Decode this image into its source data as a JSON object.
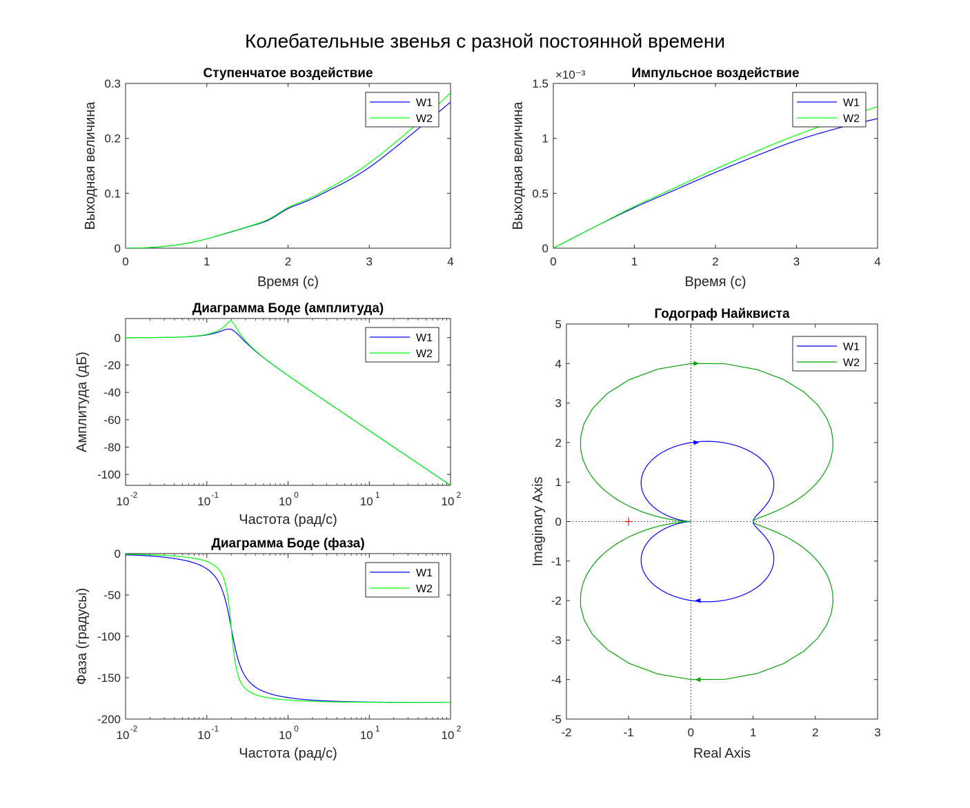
{
  "figure": {
    "suptitle": "Колебательные звенья с разной постоянной времени"
  },
  "colors": {
    "W1": "#0000ff",
    "W2": "#00ff00",
    "W2_nyquist": "#00a000",
    "critical_point": "#ff0000"
  },
  "chart_data": [
    {
      "id": "step",
      "type": "line",
      "title": "Ступенчатое воздействие",
      "xlabel": "Время (с)",
      "ylabel": "Выходная величина",
      "xlim": [
        0,
        4
      ],
      "ylim": [
        0,
        0.3
      ],
      "xticks": [
        "0",
        "1",
        "2",
        "3",
        "4"
      ],
      "yticks": [
        "0",
        "0.1",
        "0.2",
        "0.3"
      ],
      "legend": {
        "position": "top-right",
        "entries": [
          "W1",
          "W2"
        ]
      },
      "series": [
        {
          "name": "W1",
          "x": [
            0,
            0.25,
            0.5,
            0.75,
            1,
            1.25,
            1.5,
            1.75,
            2,
            2.25,
            2.5,
            2.75,
            3,
            3.25,
            3.5,
            3.75,
            4
          ],
          "y": [
            0,
            0.0008,
            0.0037,
            0.0087,
            0.017,
            0.0275,
            0.0385,
            0.0505,
            0.072,
            0.087,
            0.105,
            0.124,
            0.147,
            0.175,
            0.205,
            0.235,
            0.266
          ]
        },
        {
          "name": "W2",
          "x": [
            0,
            0.25,
            0.5,
            0.75,
            1,
            1.25,
            1.5,
            1.75,
            2,
            2.25,
            2.5,
            2.75,
            3,
            3.25,
            3.5,
            3.75,
            4
          ],
          "y": [
            0,
            0.0008,
            0.0037,
            0.0088,
            0.017,
            0.028,
            0.039,
            0.052,
            0.074,
            0.09,
            0.109,
            0.13,
            0.155,
            0.184,
            0.215,
            0.248,
            0.283
          ]
        }
      ]
    },
    {
      "id": "impulse",
      "type": "line",
      "title": "Импульсное воздействие",
      "xlabel": "Время (с)",
      "ylabel": "Выходная величина",
      "xlim": [
        0,
        4
      ],
      "ylim": [
        0,
        0.0015
      ],
      "xticks": [
        "0",
        "1",
        "2",
        "3",
        "4"
      ],
      "yticks": [
        "0",
        "0.5",
        "1",
        "1.5"
      ],
      "y_exponent": "×10⁻³",
      "legend": {
        "position": "top-right",
        "entries": [
          "W1",
          "W2"
        ]
      },
      "series": [
        {
          "name": "W1",
          "x": [
            0,
            0.5,
            1,
            1.5,
            2,
            2.5,
            3,
            3.5,
            4
          ],
          "y": [
            0,
            0.00019,
            0.00037,
            0.00053,
            0.00069,
            0.00084,
            0.00098,
            0.00109,
            0.00118
          ]
        },
        {
          "name": "W2",
          "x": [
            0,
            0.5,
            1,
            1.5,
            2,
            2.5,
            3,
            3.5,
            4
          ],
          "y": [
            0,
            0.00019,
            0.00038,
            0.00055,
            0.00072,
            0.00088,
            0.00103,
            0.00116,
            0.00129
          ]
        }
      ]
    },
    {
      "id": "bode_mag",
      "type": "line",
      "title": "Диаграмма Боде (амплитуда)",
      "xlabel": "Частота (рад/с)",
      "ylabel": "Амплитуда (дБ)",
      "xscale": "log",
      "xlim": [
        0.01,
        100
      ],
      "ylim": [
        -108,
        14
      ],
      "xticks": [
        "-2",
        "-1",
        "0",
        "1",
        "2"
      ],
      "xtick_base": "10",
      "yticks": [
        "0",
        "-20",
        "-40",
        "-60",
        "-80",
        "-100"
      ],
      "legend": {
        "position": "top-right",
        "entries": [
          "W1",
          "W2"
        ]
      },
      "series": [
        {
          "name": "W1",
          "model": {
            "wn": 0.2,
            "zeta": 0.25
          }
        },
        {
          "name": "W2",
          "model": {
            "wn": 0.2,
            "zeta": 0.125
          }
        }
      ]
    },
    {
      "id": "bode_phase",
      "type": "line",
      "title": "Диаграмма Боде (фаза)",
      "xlabel": "Частота (рад/с)",
      "ylabel": "Фаза (градусы)",
      "xscale": "log",
      "xlim": [
        0.01,
        100
      ],
      "ylim": [
        -200,
        0
      ],
      "xticks": [
        "-2",
        "-1",
        "0",
        "1",
        "2"
      ],
      "xtick_base": "10",
      "yticks": [
        "0",
        "-50",
        "-100",
        "-150",
        "-200"
      ],
      "legend": {
        "position": "top-right",
        "entries": [
          "W1",
          "W2"
        ]
      },
      "series": [
        {
          "name": "W1",
          "model": {
            "wn": 0.2,
            "zeta": 0.25
          }
        },
        {
          "name": "W2",
          "model": {
            "wn": 0.2,
            "zeta": 0.125
          }
        }
      ]
    },
    {
      "id": "nyquist",
      "type": "line",
      "title": "Годограф Найквиста",
      "xlabel": "Real Axis",
      "ylabel": "Imaginary Axis",
      "xlim": [
        -2,
        3
      ],
      "ylim": [
        -5,
        5
      ],
      "xticks": [
        "-2",
        "-1",
        "0",
        "1",
        "2",
        "3"
      ],
      "yticks": [
        "-5",
        "-4",
        "-3",
        "-2",
        "-1",
        "0",
        "1",
        "2",
        "3",
        "4",
        "5"
      ],
      "critical_point": [
        -1,
        0
      ],
      "legend": {
        "position": "top-right",
        "entries": [
          "W1",
          "W2"
        ]
      },
      "series": [
        {
          "name": "W1",
          "model": {
            "zeta": 0.25
          }
        },
        {
          "name": "W2",
          "model": {
            "zeta": 0.125
          }
        }
      ]
    }
  ]
}
